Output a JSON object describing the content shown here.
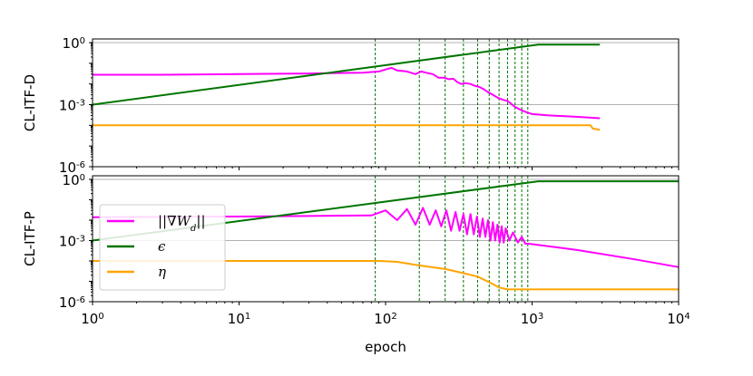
{
  "chart_data": [
    {
      "type": "line",
      "panel": "top",
      "ylabel": "CL-ITF-D",
      "xlabel": "",
      "xscale": "log",
      "yscale": "log",
      "xlim": [
        1,
        10000
      ],
      "ylim": [
        1e-06,
        1.5
      ],
      "yticks": [
        {
          "base": "10",
          "exp": "0",
          "value": 1
        },
        {
          "base": "10",
          "exp": "-3",
          "value": 0.001
        },
        {
          "base": "10",
          "exp": "-6",
          "value": 1e-06
        }
      ],
      "hlines": [
        1,
        0.001
      ],
      "vlines": [
        85,
        170,
        255,
        340,
        425,
        510,
        595,
        680,
        765,
        850,
        935
      ],
      "series": [
        {
          "name": "||∇W_d||",
          "color": "#ff00ff",
          "points": [
            [
              1,
              0.028
            ],
            [
              3,
              0.028
            ],
            [
              10,
              0.03
            ],
            [
              30,
              0.032
            ],
            [
              70,
              0.035
            ],
            [
              90,
              0.04
            ],
            [
              100,
              0.05
            ],
            [
              110,
              0.06
            ],
            [
              120,
              0.045
            ],
            [
              140,
              0.04
            ],
            [
              160,
              0.03
            ],
            [
              175,
              0.04
            ],
            [
              190,
              0.035
            ],
            [
              210,
              0.03
            ],
            [
              230,
              0.02
            ],
            [
              250,
              0.02
            ],
            [
              270,
              0.017
            ],
            [
              290,
              0.018
            ],
            [
              310,
              0.012
            ],
            [
              330,
              0.01
            ],
            [
              350,
              0.011
            ],
            [
              380,
              0.01
            ],
            [
              410,
              0.008
            ],
            [
              440,
              0.007
            ],
            [
              470,
              0.0055
            ],
            [
              500,
              0.004
            ],
            [
              540,
              0.003
            ],
            [
              580,
              0.0022
            ],
            [
              620,
              0.0018
            ],
            [
              680,
              0.0015
            ],
            [
              720,
              0.0011
            ],
            [
              760,
              0.0008
            ],
            [
              820,
              0.0006
            ],
            [
              900,
              0.00045
            ],
            [
              1000,
              0.00035
            ],
            [
              1300,
              0.0003
            ],
            [
              2000,
              0.00026
            ],
            [
              2900,
              0.00022
            ]
          ]
        },
        {
          "name": "ϵ",
          "color": "#007500",
          "points": [
            [
              1,
              0.001
            ],
            [
              1100,
              0.8
            ],
            [
              2900,
              0.8
            ]
          ]
        },
        {
          "name": "η",
          "color": "#ffa500",
          "points": [
            [
              1,
              0.0001
            ],
            [
              2500,
              0.0001
            ],
            [
              2600,
              7e-05
            ],
            [
              2900,
              6e-05
            ]
          ]
        }
      ]
    },
    {
      "type": "line",
      "panel": "bottom",
      "ylabel": "CL-ITF-P",
      "xlabel": "epoch",
      "xscale": "log",
      "yscale": "log",
      "xlim": [
        1,
        10000
      ],
      "ylim": [
        1e-06,
        1.5
      ],
      "xticks": [
        {
          "base": "10",
          "exp": "0",
          "value": 1
        },
        {
          "base": "10",
          "exp": "1",
          "value": 10
        },
        {
          "base": "10",
          "exp": "2",
          "value": 100
        },
        {
          "base": "10",
          "exp": "3",
          "value": 1000
        },
        {
          "base": "10",
          "exp": "4",
          "value": 10000
        }
      ],
      "yticks": [
        {
          "base": "10",
          "exp": "0",
          "value": 1
        },
        {
          "base": "10",
          "exp": "-3",
          "value": 0.001
        },
        {
          "base": "10",
          "exp": "-6",
          "value": 1e-06
        }
      ],
      "hlines": [
        1,
        0.001
      ],
      "vlines": [
        85,
        170,
        255,
        340,
        425,
        510,
        595,
        680,
        765,
        850,
        935
      ],
      "legend": {
        "position": "lower-left",
        "entries": [
          "||∇W_d||",
          "ϵ",
          "η"
        ]
      },
      "series": [
        {
          "name": "||∇W_d||",
          "color": "#ff00ff",
          "points": [
            [
              1,
              0.014
            ],
            [
              10,
              0.015
            ],
            [
              30,
              0.016
            ],
            [
              80,
              0.017
            ],
            [
              100,
              0.03
            ],
            [
              120,
              0.01
            ],
            [
              140,
              0.035
            ],
            [
              160,
              0.006
            ],
            [
              180,
              0.04
            ],
            [
              200,
              0.006
            ],
            [
              220,
              0.03
            ],
            [
              240,
              0.005
            ],
            [
              260,
              0.03
            ],
            [
              280,
              0.003
            ],
            [
              300,
              0.025
            ],
            [
              320,
              0.003
            ],
            [
              340,
              0.02
            ],
            [
              360,
              0.002
            ],
            [
              380,
              0.02
            ],
            [
              400,
              0.002
            ],
            [
              420,
              0.015
            ],
            [
              440,
              0.0015
            ],
            [
              460,
              0.012
            ],
            [
              480,
              0.0015
            ],
            [
              500,
              0.01
            ],
            [
              520,
              0.001
            ],
            [
              540,
              0.008
            ],
            [
              560,
              0.001
            ],
            [
              580,
              0.006
            ],
            [
              600,
              0.0008
            ],
            [
              620,
              0.005
            ],
            [
              640,
              0.0008
            ],
            [
              660,
              0.004
            ],
            [
              700,
              0.001
            ],
            [
              740,
              0.0025
            ],
            [
              800,
              0.0008
            ],
            [
              850,
              0.0015
            ],
            [
              900,
              0.0007
            ],
            [
              950,
              0.0007
            ],
            [
              2000,
              0.00035
            ],
            [
              5000,
              0.00012
            ],
            [
              10000,
              5e-05
            ]
          ]
        },
        {
          "name": "ϵ",
          "color": "#007500",
          "points": [
            [
              1,
              0.001
            ],
            [
              1100,
              0.8
            ],
            [
              10000,
              0.8
            ]
          ]
        },
        {
          "name": "η",
          "color": "#ffa500",
          "points": [
            [
              1,
              0.0001
            ],
            [
              90,
              0.0001
            ],
            [
              120,
              9e-05
            ],
            [
              170,
              6e-05
            ],
            [
              255,
              4e-05
            ],
            [
              340,
              2.5e-05
            ],
            [
              425,
              1.7e-05
            ],
            [
              510,
              9e-06
            ],
            [
              595,
              5e-06
            ],
            [
              680,
              4e-06
            ],
            [
              10000,
              4e-06
            ]
          ]
        }
      ]
    }
  ]
}
